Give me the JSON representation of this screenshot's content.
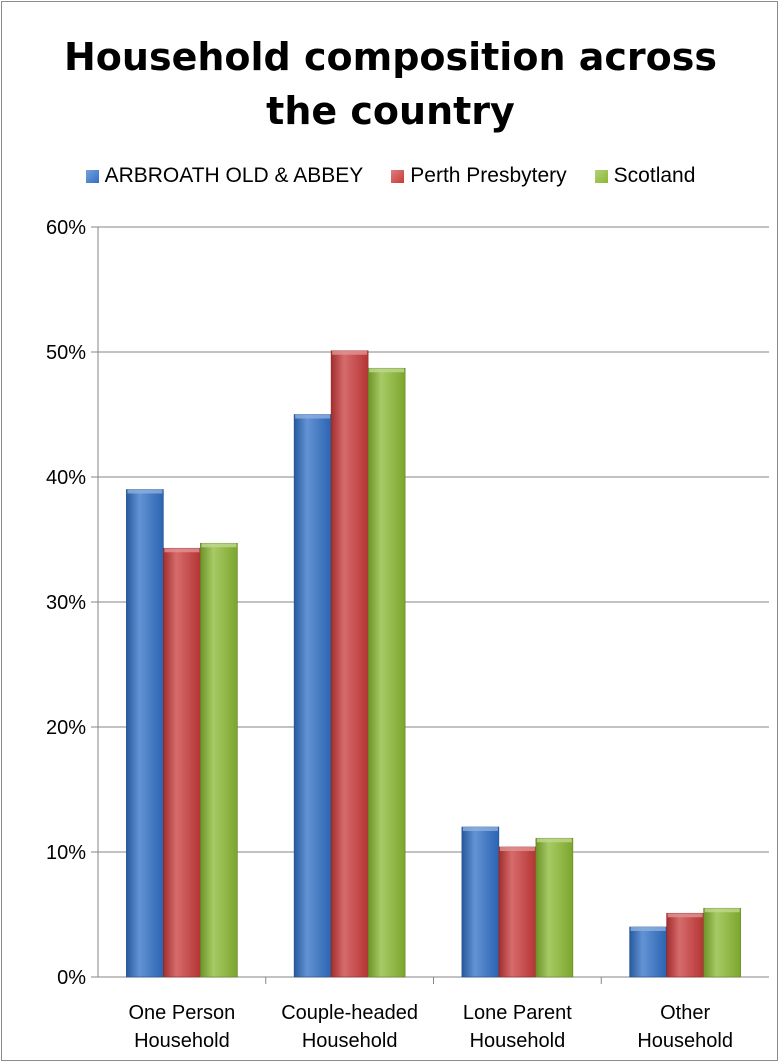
{
  "chart_data": {
    "type": "bar",
    "title_lines": [
      "Household composition across",
      "the country"
    ],
    "categories": [
      [
        "One Person",
        "Household"
      ],
      [
        "Couple-headed",
        "Household"
      ],
      [
        "Lone Parent",
        "Household"
      ],
      [
        "Other",
        "Household"
      ]
    ],
    "series": [
      {
        "name": "ARBROATH OLD & ABBEY",
        "values": [
          0.39,
          0.45,
          0.12,
          0.04
        ],
        "color": "#2f6fc6"
      },
      {
        "name": "Perth Presbytery",
        "values": [
          0.343,
          0.501,
          0.104,
          0.051
        ],
        "color": "#c93a3a"
      },
      {
        "name": "Scotland",
        "values": [
          0.347,
          0.487,
          0.111,
          0.055
        ],
        "color": "#8ab832"
      }
    ],
    "yticks": [
      "0%",
      "10%",
      "20%",
      "30%",
      "40%",
      "50%",
      "60%"
    ],
    "ylim": [
      0,
      0.6
    ],
    "grid": true,
    "legend_position": "top"
  }
}
